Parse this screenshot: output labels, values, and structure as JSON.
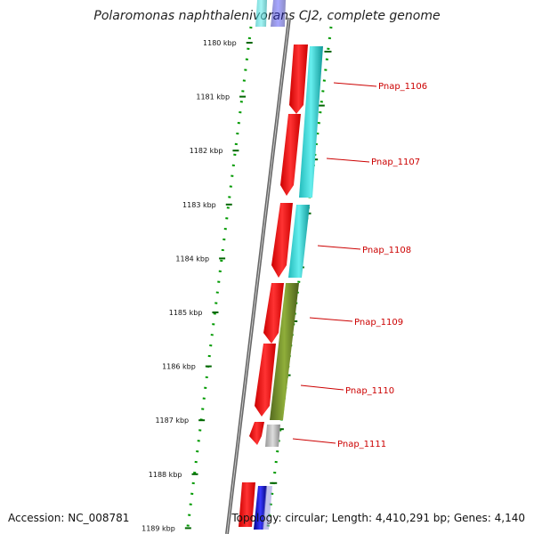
{
  "title": "Polaromonas naphthalenivorans CJ2, complete genome",
  "footer": {
    "accession": "Accession: NC_008781",
    "summary": "Topology: circular; Length: 4,410,291 bp; Genes: 4,140"
  },
  "scale_labels": [
    "1180 kbp",
    "1181 kbp",
    "1182 kbp",
    "1183 kbp",
    "1184 kbp",
    "1185 kbp",
    "1186 kbp",
    "1187 kbp",
    "1188 kbp",
    "1189 kbp"
  ],
  "gene_labels": [
    "Pnap_1106",
    "Pnap_1107",
    "Pnap_1108",
    "Pnap_1109",
    "Pnap_1110",
    "Pnap_1111"
  ],
  "colors": {
    "gene_arrow": "#ff0000",
    "cog_cyan": "#22cccc",
    "cog_olive": "#6b8e23",
    "cog_gray": "#aaaaaa",
    "cog_blue": "#1a1acc",
    "tick_green": "#006600",
    "backbone": "#666666",
    "label_red": "#cc0000"
  }
}
